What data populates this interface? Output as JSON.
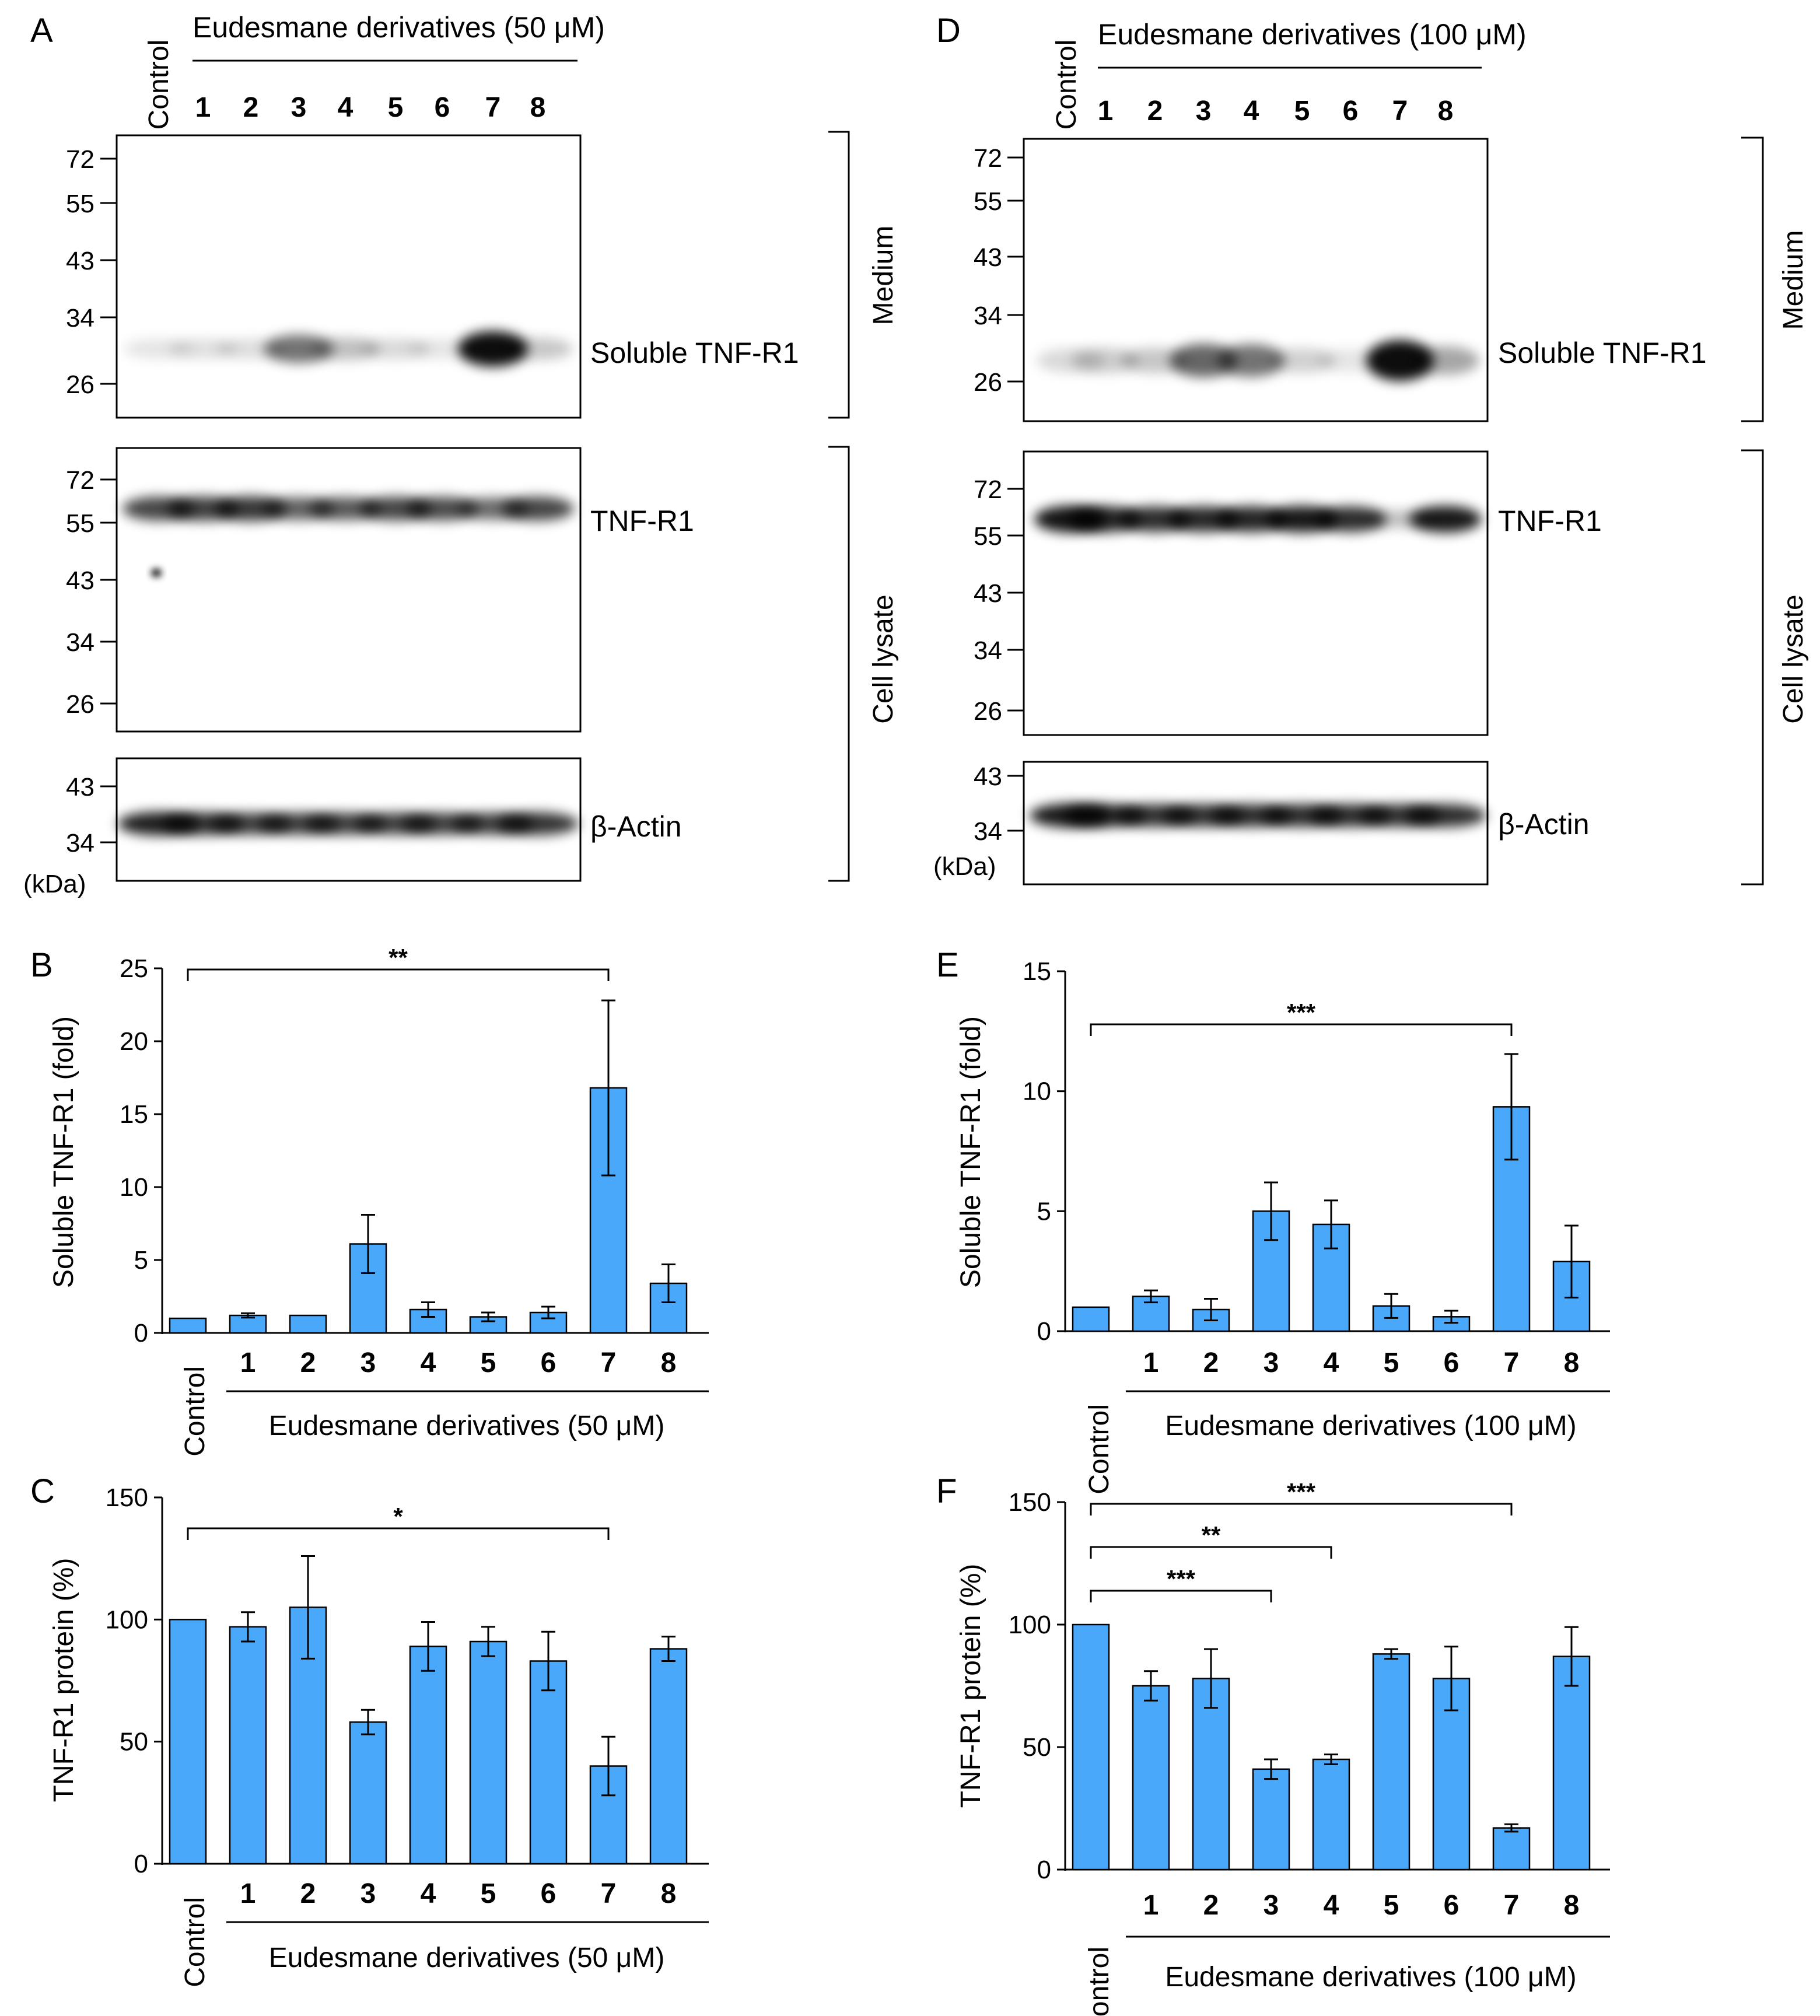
{
  "lane_labels": [
    "Control",
    "1",
    "2",
    "3",
    "4",
    "5",
    "6",
    "7",
    "8"
  ],
  "blot_panels": [
    {
      "label": "A",
      "header": "Eudesmane derivatives (50 μM)",
      "blots": [
        {
          "label": "Soluble TNF-R1",
          "markers": [
            "72",
            "55",
            "43",
            "34",
            "26"
          ]
        },
        {
          "label": "TNF-R1",
          "markers": [
            "72",
            "55",
            "43",
            "34",
            "26"
          ]
        },
        {
          "label": "β-Actin",
          "markers": [
            "43",
            "34"
          ]
        }
      ],
      "unit": "(kDa)",
      "groups": [
        "Medium",
        "Cell lysate"
      ],
      "band_intensity": {
        "soluble": [
          0.1,
          0.12,
          0.13,
          0.55,
          0.25,
          0.15,
          0.1,
          0.95,
          0.22
        ],
        "tnfr1": [
          0.72,
          0.75,
          0.78,
          0.62,
          0.65,
          0.72,
          0.7,
          0.58,
          0.72
        ],
        "actin": [
          0.88,
          0.8,
          0.75,
          0.75,
          0.75,
          0.75,
          0.75,
          0.75,
          0.8
        ]
      }
    },
    {
      "label": "D",
      "header": "Eudesmane derivatives (100 μM)",
      "blots": [
        {
          "label": "Soluble TNF-R1",
          "markers": [
            "72",
            "55",
            "43",
            "34",
            "26"
          ]
        },
        {
          "label": "TNF-R1",
          "markers": [
            "72",
            "55",
            "43",
            "34",
            "26"
          ]
        },
        {
          "label": "β-Actin",
          "markers": [
            "43",
            "34"
          ]
        }
      ],
      "unit": "(kDa)",
      "groups": [
        "Medium",
        "Cell lysate"
      ],
      "band_intensity": {
        "soluble": [
          0.15,
          0.2,
          0.22,
          0.6,
          0.55,
          0.18,
          0.1,
          0.95,
          0.35
        ],
        "tnfr1": [
          0.92,
          0.85,
          0.82,
          0.84,
          0.85,
          0.9,
          0.82,
          0.25,
          0.9
        ],
        "actin": [
          0.9,
          0.82,
          0.8,
          0.8,
          0.82,
          0.82,
          0.82,
          0.8,
          0.82
        ]
      }
    }
  ],
  "chart_data": [
    {
      "panel": "B",
      "type": "bar",
      "ylabel": "Soluble TNF-R1 (fold)",
      "xlabel": "Eudesmane derivatives (50 μM)",
      "categories": [
        "Control",
        "1",
        "2",
        "3",
        "4",
        "5",
        "6",
        "7",
        "8"
      ],
      "values": [
        1.0,
        1.2,
        1.2,
        6.1,
        1.6,
        1.1,
        1.4,
        16.8,
        3.4
      ],
      "errors": [
        0,
        0.15,
        0,
        2.0,
        0.5,
        0.3,
        0.4,
        6.0,
        1.3
      ],
      "ylim": [
        0,
        25
      ],
      "yticks": [
        "0",
        "5",
        "10",
        "15",
        "20",
        "25"
      ],
      "significance": [
        {
          "from": 0,
          "to": 7,
          "label": "**"
        }
      ]
    },
    {
      "panel": "C",
      "type": "bar",
      "ylabel": "TNF-R1 protein (%)",
      "xlabel": "Eudesmane derivatives (50 μM)",
      "categories": [
        "Control",
        "1",
        "2",
        "3",
        "4",
        "5",
        "6",
        "7",
        "8"
      ],
      "values": [
        100,
        97,
        105,
        58,
        89,
        91,
        83,
        40,
        88
      ],
      "errors": [
        0,
        6,
        21,
        5,
        10,
        6,
        12,
        12,
        5
      ],
      "ylim": [
        0,
        150
      ],
      "yticks": [
        "0",
        "50",
        "100",
        "150"
      ],
      "significance": [
        {
          "from": 0,
          "to": 7,
          "label": "*"
        }
      ]
    },
    {
      "panel": "E",
      "type": "bar",
      "ylabel": "Soluble TNF-R1 (fold)",
      "xlabel": "Eudesmane derivatives (100 μM)",
      "categories": [
        "Control",
        "1",
        "2",
        "3",
        "4",
        "5",
        "6",
        "7",
        "8"
      ],
      "values": [
        1.0,
        1.45,
        0.9,
        5.0,
        4.45,
        1.05,
        0.6,
        9.35,
        2.9
      ],
      "errors": [
        0,
        0.25,
        0.45,
        1.2,
        1.0,
        0.5,
        0.25,
        2.2,
        1.5
      ],
      "ylim": [
        0,
        15
      ],
      "yticks": [
        "0",
        "5",
        "10",
        "15"
      ],
      "significance": [
        {
          "from": 0,
          "to": 7,
          "label": "***"
        }
      ]
    },
    {
      "panel": "F",
      "type": "bar",
      "ylabel": "TNF-R1 protein (%)",
      "xlabel": "Eudesmane derivatives (100 μM)",
      "categories": [
        "Control",
        "1",
        "2",
        "3",
        "4",
        "5",
        "6",
        "7",
        "8"
      ],
      "values": [
        100,
        75,
        78,
        41,
        45,
        88,
        78,
        17,
        87
      ],
      "errors": [
        0,
        6,
        12,
        4,
        2,
        2,
        13,
        1.5,
        12
      ],
      "ylim": [
        0,
        150
      ],
      "yticks": [
        "0",
        "50",
        "100",
        "150"
      ],
      "significance": [
        {
          "from": 0,
          "to": 3,
          "label": "***"
        },
        {
          "from": 0,
          "to": 4,
          "label": "**"
        },
        {
          "from": 0,
          "to": 7,
          "label": "***"
        }
      ]
    }
  ]
}
